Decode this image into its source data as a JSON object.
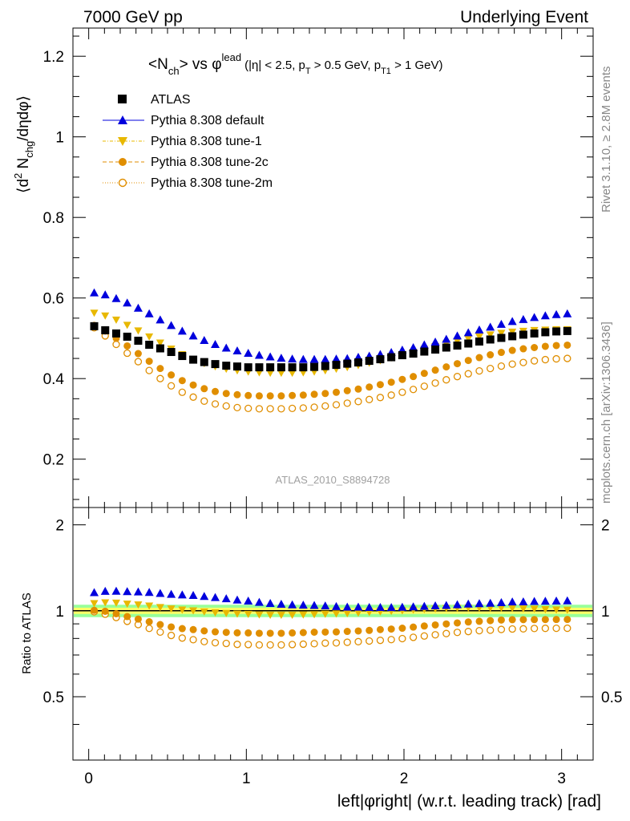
{
  "header": {
    "left": "7000 GeV pp",
    "right": "Underlying Event"
  },
  "side": {
    "rivet": "Rivet 3.1.10, ≥ 2.8M events",
    "mcplots": "mcplots.cern.ch [arXiv:1306.3436]"
  },
  "reference": "ATLAS_2010_S8894728",
  "colors": {
    "atlas": "#000000",
    "default": "#0000dd",
    "tune1": "#e8b800",
    "tune2c": "#e08e00",
    "tune2m": "#e08e00",
    "band_inner": "#ffff66",
    "band_outer": "#99ff99"
  },
  "chart_data": {
    "type": "scatter",
    "title": {
      "main": "<N",
      "main_sub": "ch",
      "vs": "> vs φ",
      "sup": "lead",
      "cuts": "(|η| < 2.5, p",
      "pt_sub": "T",
      "cuts2": " > 0.5 GeV, p",
      "pt1_sub": "T1",
      "cuts3": " > 1 GeV)"
    },
    "ylabel_main": {
      "a": "⟨d",
      "sup": "2",
      "b": " N",
      "sub": "chg",
      "c": "/dηdφ⟩"
    },
    "ylabel_ratio": "Ratio to ATLAS",
    "xlabel": "left|φright| (w.r.t. leading track) [rad]",
    "xlim": [
      -0.1,
      3.2
    ],
    "ylim_main": [
      0.08,
      1.27
    ],
    "ylim_ratio": [
      0.3,
      2.3
    ],
    "log_ratio": true,
    "x_ticks": [
      0,
      1,
      2,
      3
    ],
    "y_ticks_main": [
      0.2,
      0.4,
      0.6,
      0.8,
      1,
      1.2
    ],
    "y_ticks_main_labels": [
      "0.2",
      "0.4",
      "0.6",
      "0.8",
      "1",
      "1.2"
    ],
    "y_ticks_ratio": [
      0.5,
      1,
      2
    ],
    "y_ticks_ratio_labels": [
      "0.5",
      "1",
      "2"
    ],
    "x_tick_labels": [
      "0",
      "1",
      "2",
      "3"
    ],
    "x_start": 0.0349,
    "x_step": 0.0698,
    "n_points": 44,
    "legend_position": "top-left",
    "legend": [
      "ATLAS",
      "Pythia 8.308 default",
      "Pythia 8.308 tune-1",
      "Pythia 8.308 tune-2c",
      "Pythia 8.308 tune-2m"
    ],
    "ratio_band": {
      "inner": 0.025,
      "outer": 0.05
    },
    "series": [
      {
        "name": "ATLAS",
        "values": [
          0.53,
          0.52,
          0.512,
          0.504,
          0.494,
          0.484,
          0.475,
          0.466,
          0.456,
          0.447,
          0.441,
          0.436,
          0.432,
          0.43,
          0.428,
          0.428,
          0.428,
          0.428,
          0.428,
          0.428,
          0.429,
          0.431,
          0.434,
          0.437,
          0.44,
          0.444,
          0.448,
          0.453,
          0.458,
          0.462,
          0.467,
          0.472,
          0.477,
          0.482,
          0.487,
          0.492,
          0.497,
          0.501,
          0.505,
          0.509,
          0.512,
          0.515,
          0.517,
          0.518
        ]
      },
      {
        "name": "Pythia 8.308 default",
        "values": [
          0.612,
          0.607,
          0.598,
          0.587,
          0.574,
          0.56,
          0.545,
          0.531,
          0.517,
          0.505,
          0.494,
          0.484,
          0.475,
          0.468,
          0.462,
          0.457,
          0.453,
          0.45,
          0.448,
          0.447,
          0.447,
          0.447,
          0.448,
          0.449,
          0.452,
          0.455,
          0.459,
          0.464,
          0.47,
          0.476,
          0.483,
          0.49,
          0.497,
          0.505,
          0.513,
          0.52,
          0.527,
          0.534,
          0.541,
          0.546,
          0.551,
          0.555,
          0.558,
          0.56
        ]
      },
      {
        "name": "Pythia 8.308 tune-1",
        "values": [
          0.563,
          0.556,
          0.546,
          0.533,
          0.519,
          0.504,
          0.489,
          0.474,
          0.46,
          0.448,
          0.438,
          0.43,
          0.424,
          0.42,
          0.417,
          0.415,
          0.414,
          0.414,
          0.414,
          0.415,
          0.417,
          0.42,
          0.424,
          0.428,
          0.433,
          0.439,
          0.445,
          0.452,
          0.459,
          0.466,
          0.473,
          0.48,
          0.487,
          0.493,
          0.499,
          0.504,
          0.509,
          0.513,
          0.516,
          0.518,
          0.52,
          0.521,
          0.522,
          0.522
        ]
      },
      {
        "name": "Pythia 8.308 tune-2c",
        "values": [
          0.532,
          0.518,
          0.5,
          0.481,
          0.462,
          0.443,
          0.425,
          0.409,
          0.395,
          0.384,
          0.375,
          0.368,
          0.363,
          0.36,
          0.358,
          0.357,
          0.357,
          0.357,
          0.358,
          0.359,
          0.361,
          0.363,
          0.366,
          0.37,
          0.374,
          0.379,
          0.385,
          0.391,
          0.398,
          0.405,
          0.413,
          0.421,
          0.429,
          0.437,
          0.445,
          0.452,
          0.459,
          0.465,
          0.47,
          0.474,
          0.477,
          0.48,
          0.482,
          0.483
        ]
      },
      {
        "name": "Pythia 8.308 tune-2m",
        "values": [
          0.526,
          0.506,
          0.485,
          0.463,
          0.442,
          0.42,
          0.4,
          0.382,
          0.366,
          0.354,
          0.344,
          0.337,
          0.332,
          0.328,
          0.326,
          0.325,
          0.325,
          0.325,
          0.326,
          0.327,
          0.329,
          0.332,
          0.335,
          0.339,
          0.343,
          0.348,
          0.353,
          0.359,
          0.366,
          0.373,
          0.381,
          0.389,
          0.397,
          0.405,
          0.412,
          0.419,
          0.425,
          0.431,
          0.436,
          0.44,
          0.444,
          0.447,
          0.449,
          0.45
        ]
      }
    ]
  }
}
